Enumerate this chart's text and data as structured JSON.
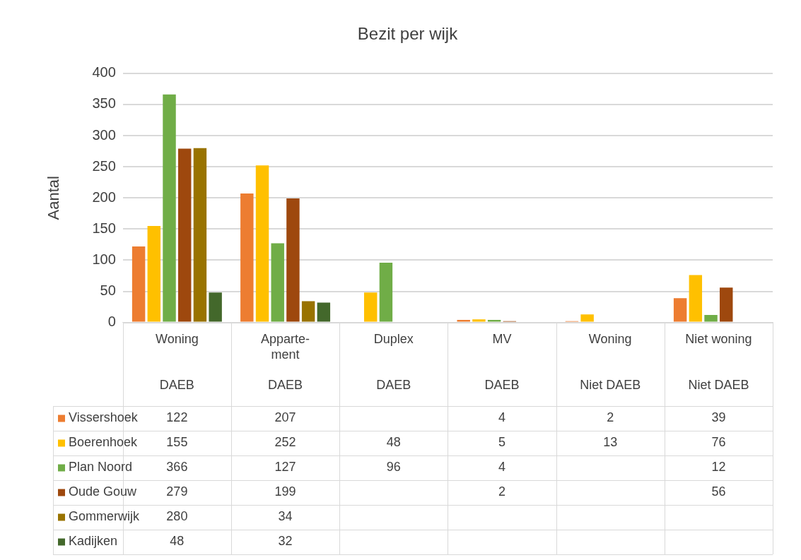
{
  "chart_data": {
    "type": "bar",
    "title": "Bezit per wijk",
    "ylabel": "Aantal",
    "categories": [
      "Woning\nDAEB",
      "Apparte-\nment\nDAEB",
      "Duplex\nDAEB",
      "MV\nDAEB",
      "Woning\nNiet DAEB",
      "Niet woning\nNiet DAEB"
    ],
    "series": [
      {
        "name": "Vissershoek",
        "color": "#ed7d31",
        "values": [
          122,
          207,
          null,
          4,
          2,
          39
        ]
      },
      {
        "name": "Boerenhoek",
        "color": "#ffc000",
        "values": [
          155,
          252,
          48,
          5,
          13,
          76
        ]
      },
      {
        "name": "Plan Noord",
        "color": "#70ad47",
        "values": [
          366,
          127,
          96,
          4,
          null,
          12
        ]
      },
      {
        "name": "Oude Gouw",
        "color": "#9e480e",
        "values": [
          279,
          199,
          null,
          2,
          null,
          56
        ]
      },
      {
        "name": "Gommerwijk",
        "color": "#997300",
        "values": [
          280,
          34,
          null,
          null,
          null,
          null
        ]
      },
      {
        "name": "Kadijken",
        "color": "#43682b",
        "values": [
          48,
          32,
          null,
          null,
          null,
          null
        ]
      }
    ],
    "ylim": [
      0,
      400
    ],
    "yticks": [
      0,
      50,
      100,
      150,
      200,
      250,
      300,
      350,
      400
    ],
    "grid": "y",
    "legend": "bottom",
    "data_labels": true
  }
}
